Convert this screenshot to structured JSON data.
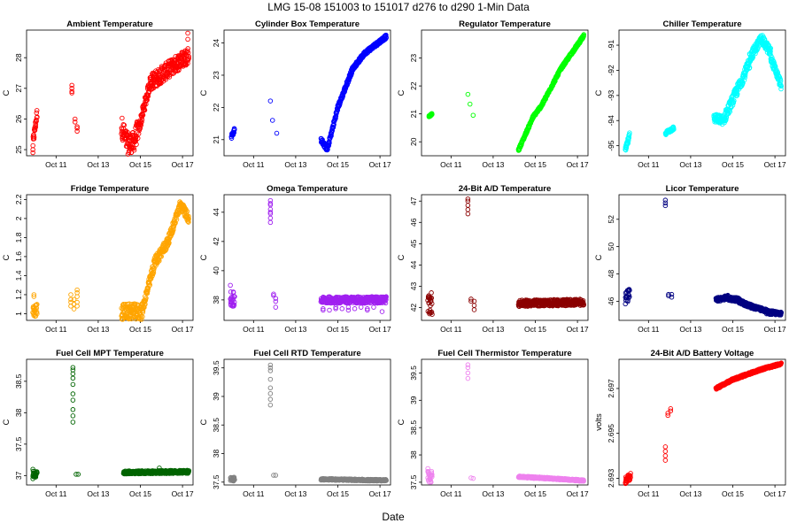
{
  "figure": {
    "title": "LMG   15-08    151003 to 151017    d276 to d290   1-Min Data",
    "xlabel": "Date"
  },
  "chart_data": [
    {
      "type": "scatter",
      "title": "Ambient Temperature",
      "ylabel": "C",
      "color": "#ff0000",
      "xlim": [
        9.6,
        17.5
      ],
      "ylim": [
        24.8,
        28.9
      ],
      "yticks": [
        25,
        26,
        27,
        28
      ],
      "xticks": [
        "Oct 11",
        "Oct 13",
        "Oct 15",
        "Oct 17"
      ],
      "xtick_values": [
        11,
        13,
        15,
        17
      ],
      "segments": [
        {
          "x0": 9.9,
          "x1": 10.1,
          "y0": 25.2,
          "y1": 26.2,
          "spread": 0.35
        },
        {
          "x0": 14.1,
          "x1": 14.9,
          "y0": 25.8,
          "y1": 25.7,
          "spread": 0.7,
          "shape": "dip"
        },
        {
          "x0": 14.9,
          "x1": 15.5,
          "y0": 25.6,
          "y1": 27.3,
          "spread": 0.4
        },
        {
          "x0": 15.5,
          "x1": 17.3,
          "y0": 27.2,
          "y1": 28.1,
          "spread": 0.55
        }
      ],
      "clusters": [
        {
          "x": 11.75,
          "ys": [
            26.9,
            27.0,
            27.1,
            26.85
          ]
        },
        {
          "x": 11.9,
          "ys": [
            25.9,
            26.0
          ]
        },
        {
          "x": 12.0,
          "ys": [
            25.6,
            25.7,
            25.75
          ]
        },
        {
          "x": 9.9,
          "ys": [
            24.9,
            25.0
          ]
        },
        {
          "x": 17.25,
          "ys": [
            28.8,
            28.6
          ]
        }
      ]
    },
    {
      "type": "scatter",
      "title": "Cylinder Box Temperature",
      "ylabel": "C",
      "color": "#0000ff",
      "xlim": [
        9.6,
        17.5
      ],
      "ylim": [
        20.5,
        24.4
      ],
      "yticks": [
        21,
        22,
        23,
        24
      ],
      "xticks": [
        "Oct 11",
        "Oct 13",
        "Oct 15",
        "Oct 17"
      ],
      "xtick_values": [
        11,
        13,
        15,
        17
      ],
      "segments": [
        {
          "x0": 9.95,
          "x1": 10.1,
          "y0": 21.1,
          "y1": 21.3,
          "spread": 0.15
        },
        {
          "x0": 14.2,
          "x1": 14.5,
          "y0": 21.0,
          "y1": 20.7,
          "spread": 0.15
        },
        {
          "x0": 14.5,
          "x1": 15.0,
          "y0": 20.7,
          "y1": 22.0,
          "spread": 0.15
        },
        {
          "x0": 15.0,
          "x1": 15.7,
          "y0": 22.0,
          "y1": 23.2,
          "spread": 0.15
        },
        {
          "x0": 15.7,
          "x1": 16.3,
          "y0": 23.2,
          "y1": 23.7,
          "spread": 0.12
        },
        {
          "x0": 16.3,
          "x1": 17.3,
          "y0": 23.7,
          "y1": 24.2,
          "spread": 0.12
        }
      ],
      "clusters": [
        {
          "x": 11.8,
          "ys": [
            22.2
          ]
        },
        {
          "x": 11.9,
          "ys": [
            21.6
          ]
        },
        {
          "x": 12.1,
          "ys": [
            21.2
          ]
        }
      ]
    },
    {
      "type": "scatter",
      "title": "Regulator Temperature",
      "ylabel": "C",
      "color": "#00ff00",
      "xlim": [
        9.6,
        17.5
      ],
      "ylim": [
        19.5,
        24.0
      ],
      "yticks": [
        20,
        21,
        22,
        23
      ],
      "xticks": [
        "Oct 11",
        "Oct 13",
        "Oct 15",
        "Oct 17"
      ],
      "xtick_values": [
        11,
        13,
        15,
        17
      ],
      "segments": [
        {
          "x0": 9.95,
          "x1": 10.1,
          "y0": 20.9,
          "y1": 21.0,
          "spread": 0.06
        },
        {
          "x0": 14.2,
          "x1": 14.9,
          "y0": 19.7,
          "y1": 20.9,
          "spread": 0.1
        },
        {
          "x0": 14.9,
          "x1": 15.3,
          "y0": 20.9,
          "y1": 21.3,
          "spread": 0.1
        },
        {
          "x0": 15.3,
          "x1": 16.2,
          "y0": 21.3,
          "y1": 22.6,
          "spread": 0.1
        },
        {
          "x0": 16.2,
          "x1": 17.3,
          "y0": 22.6,
          "y1": 23.8,
          "spread": 0.1
        }
      ],
      "clusters": [
        {
          "x": 11.8,
          "ys": [
            21.7
          ]
        },
        {
          "x": 11.9,
          "ys": [
            21.35
          ]
        },
        {
          "x": 12.05,
          "ys": [
            20.95
          ]
        }
      ]
    },
    {
      "type": "scatter",
      "title": "Chiller Temperature",
      "ylabel": "C",
      "color": "#00ffff",
      "xlim": [
        9.6,
        17.5
      ],
      "ylim": [
        -95.4,
        -90.4
      ],
      "yticks": [
        -95,
        -94,
        -93,
        -92,
        -91
      ],
      "xticks": [
        "Oct 11",
        "Oct 13",
        "Oct 15",
        "Oct 17"
      ],
      "xtick_values": [
        11,
        13,
        15,
        17
      ],
      "segments": [
        {
          "x0": 9.9,
          "x1": 10.1,
          "y0": -95.2,
          "y1": -94.6,
          "spread": 0.25
        },
        {
          "x0": 11.8,
          "x1": 12.2,
          "y0": -94.5,
          "y1": -94.3,
          "spread": 0.15
        },
        {
          "x0": 14.1,
          "x1": 14.6,
          "y0": -93.9,
          "y1": -94.0,
          "spread": 0.35
        },
        {
          "x0": 14.6,
          "x1": 15.2,
          "y0": -93.9,
          "y1": -92.8,
          "spread": 0.45
        },
        {
          "x0": 15.2,
          "x1": 15.8,
          "y0": -92.8,
          "y1": -91.7,
          "spread": 0.45
        },
        {
          "x0": 15.8,
          "x1": 16.4,
          "y0": -91.5,
          "y1": -90.7,
          "spread": 0.4
        },
        {
          "x0": 16.4,
          "x1": 16.8,
          "y0": -90.8,
          "y1": -91.3,
          "spread": 0.4
        },
        {
          "x0": 16.8,
          "x1": 17.3,
          "y0": -91.5,
          "y1": -92.6,
          "spread": 0.35
        }
      ],
      "clusters": []
    },
    {
      "type": "scatter",
      "title": "Fridge Temperature",
      "ylabel": "C",
      "color": "#ffa500",
      "xlim": [
        9.6,
        17.5
      ],
      "ylim": [
        0.93,
        2.25
      ],
      "yticks": [
        1.0,
        1.2,
        1.4,
        1.6,
        1.8,
        2.0,
        2.2
      ],
      "xticks": [
        "Oct 11",
        "Oct 13",
        "Oct 15",
        "Oct 17"
      ],
      "xtick_values": [
        11,
        13,
        15,
        17
      ],
      "segments": [
        {
          "x0": 9.9,
          "x1": 10.1,
          "y0": 1.0,
          "y1": 1.05,
          "spread": 0.14
        },
        {
          "x0": 14.1,
          "x1": 15.1,
          "y0": 1.02,
          "y1": 1.02,
          "spread": 0.17
        },
        {
          "x0": 15.1,
          "x1": 15.7,
          "y0": 1.05,
          "y1": 1.55,
          "spread": 0.12
        },
        {
          "x0": 15.7,
          "x1": 16.3,
          "y0": 1.55,
          "y1": 1.75,
          "spread": 0.12
        },
        {
          "x0": 16.3,
          "x1": 16.9,
          "y0": 1.75,
          "y1": 2.15,
          "spread": 0.1
        },
        {
          "x0": 16.9,
          "x1": 17.3,
          "y0": 2.15,
          "y1": 2.0,
          "spread": 0.1
        }
      ],
      "clusters": [
        {
          "x": 11.7,
          "ys": [
            1.08,
            1.12,
            1.15,
            1.2
          ]
        },
        {
          "x": 11.85,
          "ys": [
            1.1,
            1.15,
            1.05
          ]
        },
        {
          "x": 12.0,
          "ys": [
            1.12,
            1.18,
            1.22,
            1.25,
            1.08
          ]
        },
        {
          "x": 9.95,
          "ys": [
            1.2,
            1.18
          ]
        }
      ]
    },
    {
      "type": "scatter",
      "title": "Omega Temperature",
      "ylabel": "C",
      "color": "#a020f0",
      "xlim": [
        9.6,
        17.5
      ],
      "ylim": [
        36.6,
        45.2
      ],
      "yticks": [
        38,
        40,
        42,
        44
      ],
      "xticks": [
        "Oct 11",
        "Oct 13",
        "Oct 15",
        "Oct 17"
      ],
      "xtick_values": [
        11,
        13,
        15,
        17
      ],
      "segments": [
        {
          "x0": 9.9,
          "x1": 10.1,
          "y0": 38.0,
          "y1": 38.0,
          "spread": 1.1
        },
        {
          "x0": 14.2,
          "x1": 17.3,
          "y0": 38.0,
          "y1": 38.0,
          "spread": 0.45
        }
      ],
      "clusters": [
        {
          "x": 11.8,
          "ys": [
            43.3,
            43.6,
            43.9,
            44.2,
            44.5,
            44.8,
            44.6,
            44.0
          ]
        },
        {
          "x": 11.95,
          "ys": [
            38.4,
            38.3
          ]
        },
        {
          "x": 12.05,
          "ys": [
            38.1,
            37.9,
            37.5
          ]
        },
        {
          "x": 9.9,
          "ys": [
            39.0
          ]
        },
        {
          "x": 14.3,
          "ys": [
            37.3,
            37.4
          ]
        },
        {
          "x": 14.6,
          "ys": [
            37.3
          ]
        },
        {
          "x": 14.9,
          "ys": [
            37.4,
            37.5
          ]
        },
        {
          "x": 15.2,
          "ys": [
            37.4
          ]
        },
        {
          "x": 15.5,
          "ys": [
            37.5,
            37.3
          ]
        },
        {
          "x": 15.8,
          "ys": [
            37.4
          ]
        },
        {
          "x": 16.1,
          "ys": [
            37.5
          ]
        },
        {
          "x": 16.4,
          "ys": [
            37.4,
            37.3
          ]
        },
        {
          "x": 16.7,
          "ys": [
            37.5
          ]
        },
        {
          "x": 17.1,
          "ys": [
            37.2
          ]
        }
      ]
    },
    {
      "type": "scatter",
      "title": "24-Bit A/D Temperature",
      "ylabel": "C",
      "color": "#8b0000",
      "xlim": [
        9.6,
        17.5
      ],
      "ylim": [
        41.4,
        47.3
      ],
      "yticks": [
        42,
        43,
        44,
        45,
        46,
        47
      ],
      "xticks": [
        "Oct 11",
        "Oct 13",
        "Oct 15",
        "Oct 17"
      ],
      "xtick_values": [
        11,
        13,
        15,
        17
      ],
      "segments": [
        {
          "x0": 9.9,
          "x1": 10.1,
          "y0": 42.2,
          "y1": 42.2,
          "spread": 1.1
        },
        {
          "x0": 14.2,
          "x1": 17.3,
          "y0": 42.2,
          "y1": 42.25,
          "spread": 0.3
        }
      ],
      "clusters": [
        {
          "x": 11.8,
          "ys": [
            46.4,
            46.6,
            46.8,
            47.0,
            47.1
          ]
        },
        {
          "x": 11.95,
          "ys": [
            42.4,
            42.3
          ]
        },
        {
          "x": 12.1,
          "ys": [
            42.3,
            42.1,
            41.9
          ]
        }
      ]
    },
    {
      "type": "scatter",
      "title": "Licor Temperature",
      "ylabel": "C",
      "color": "#000080",
      "xlim": [
        9.6,
        17.5
      ],
      "ylim": [
        44.6,
        53.8
      ],
      "yticks": [
        46,
        48,
        50,
        52
      ],
      "xticks": [
        "Oct 11",
        "Oct 13",
        "Oct 15",
        "Oct 17"
      ],
      "xtick_values": [
        11,
        13,
        15,
        17
      ],
      "segments": [
        {
          "x0": 9.9,
          "x1": 10.1,
          "y0": 46.2,
          "y1": 46.5,
          "spread": 0.9
        },
        {
          "x0": 14.2,
          "x1": 14.8,
          "y0": 46.1,
          "y1": 46.3,
          "spread": 0.3
        },
        {
          "x0": 14.8,
          "x1": 15.3,
          "y0": 46.2,
          "y1": 46.1,
          "spread": 0.3
        },
        {
          "x0": 15.3,
          "x1": 15.9,
          "y0": 46.0,
          "y1": 45.6,
          "spread": 0.3
        },
        {
          "x0": 15.9,
          "x1": 16.6,
          "y0": 45.6,
          "y1": 45.3,
          "spread": 0.25
        },
        {
          "x0": 16.6,
          "x1": 17.3,
          "y0": 45.2,
          "y1": 45.1,
          "spread": 0.3
        }
      ],
      "clusters": [
        {
          "x": 11.8,
          "ys": [
            53.0,
            53.2,
            53.4
          ]
        },
        {
          "x": 11.95,
          "ys": [
            46.5,
            46.4
          ]
        },
        {
          "x": 12.1,
          "ys": [
            46.5,
            46.3
          ]
        }
      ]
    },
    {
      "type": "scatter",
      "title": "Fuel Cell MPT Temperature",
      "ylabel": "C",
      "color": "#006400",
      "xlim": [
        9.6,
        17.5
      ],
      "ylim": [
        36.85,
        38.85
      ],
      "yticks": [
        37.0,
        37.5,
        38.0,
        38.5
      ],
      "xticks": [
        "Oct 11",
        "Oct 13",
        "Oct 15",
        "Oct 17"
      ],
      "xtick_values": [
        11,
        13,
        15,
        17
      ],
      "segments": [
        {
          "x0": 9.9,
          "x1": 10.1,
          "y0": 37.02,
          "y1": 37.02,
          "spread": 0.1
        },
        {
          "x0": 14.2,
          "x1": 17.3,
          "y0": 37.05,
          "y1": 37.06,
          "spread": 0.05
        }
      ],
      "clusters": [
        {
          "x": 11.8,
          "ys": [
            37.85,
            37.95,
            38.05,
            38.2,
            38.3,
            38.45,
            38.55,
            38.62,
            38.68,
            38.72
          ]
        },
        {
          "x": 11.95,
          "ys": [
            37.02
          ]
        },
        {
          "x": 12.05,
          "ys": [
            37.02
          ]
        },
        {
          "x": 9.9,
          "ys": [
            36.95,
            37.1
          ]
        },
        {
          "x": 15.9,
          "ys": [
            37.12
          ]
        }
      ]
    },
    {
      "type": "scatter",
      "title": "Fuel Cell RTD Temperature",
      "ylabel": "C",
      "color": "#808080",
      "xlim": [
        9.6,
        17.5
      ],
      "ylim": [
        37.45,
        39.65
      ],
      "yticks": [
        37.5,
        38.0,
        38.5,
        39.0,
        39.5
      ],
      "xticks": [
        "Oct 11",
        "Oct 13",
        "Oct 15",
        "Oct 17"
      ],
      "xtick_values": [
        11,
        13,
        15,
        17
      ],
      "segments": [
        {
          "x0": 9.9,
          "x1": 10.1,
          "y0": 37.55,
          "y1": 37.55,
          "spread": 0.08
        },
        {
          "x0": 14.2,
          "x1": 17.3,
          "y0": 37.55,
          "y1": 37.53,
          "spread": 0.03
        }
      ],
      "clusters": [
        {
          "x": 11.8,
          "ys": [
            38.85,
            38.95,
            39.05,
            39.15,
            39.3,
            39.45,
            39.5,
            39.55
          ]
        },
        {
          "x": 11.95,
          "ys": [
            37.62
          ]
        },
        {
          "x": 12.05,
          "ys": [
            37.62
          ]
        }
      ]
    },
    {
      "type": "scatter",
      "title": "Fuel Cell Thermistor Temperature",
      "ylabel": "C",
      "color": "#ee82ee",
      "xlim": [
        9.6,
        17.5
      ],
      "ylim": [
        37.45,
        39.75
      ],
      "yticks": [
        37.5,
        38.0,
        38.5,
        39.0,
        39.5
      ],
      "xticks": [
        "Oct 11",
        "Oct 13",
        "Oct 15",
        "Oct 17"
      ],
      "xtick_values": [
        11,
        13,
        15,
        17
      ],
      "segments": [
        {
          "x0": 9.9,
          "x1": 10.1,
          "y0": 37.6,
          "y1": 37.6,
          "spread": 0.2
        },
        {
          "x0": 14.2,
          "x1": 15.3,
          "y0": 37.6,
          "y1": 37.58,
          "spread": 0.03
        },
        {
          "x0": 15.3,
          "x1": 17.3,
          "y0": 37.58,
          "y1": 37.53,
          "spread": 0.03
        }
      ],
      "clusters": [
        {
          "x": 11.8,
          "ys": [
            39.4,
            39.5,
            39.6,
            39.65
          ]
        },
        {
          "x": 11.95,
          "ys": [
            37.58
          ]
        },
        {
          "x": 12.05,
          "ys": [
            37.57
          ]
        },
        {
          "x": 9.9,
          "ys": [
            37.75,
            37.7
          ]
        }
      ]
    },
    {
      "type": "scatter",
      "title": "24-Bit A/D Battery Voltage",
      "ylabel": "volts",
      "color": "#ff0000",
      "xlim": [
        9.6,
        17.5
      ],
      "ylim": [
        2.6927,
        2.6983
      ],
      "yticks": [
        2.693,
        2.695,
        2.697
      ],
      "xticks": [
        "Oct 11",
        "Oct 13",
        "Oct 15",
        "Oct 17"
      ],
      "xtick_values": [
        11,
        13,
        15,
        17
      ],
      "segments": [
        {
          "x0": 9.9,
          "x1": 10.15,
          "y0": 2.6929,
          "y1": 2.6931,
          "spread": 0.0003
        },
        {
          "x0": 14.2,
          "x1": 15.0,
          "y0": 2.697,
          "y1": 2.6974,
          "spread": 0.0001
        },
        {
          "x0": 15.0,
          "x1": 16.5,
          "y0": 2.6974,
          "y1": 2.6979,
          "spread": 0.0001
        },
        {
          "x0": 16.5,
          "x1": 17.3,
          "y0": 2.6979,
          "y1": 2.6981,
          "spread": 0.0001
        }
      ],
      "clusters": [
        {
          "x": 11.8,
          "ys": [
            2.6938,
            2.694,
            2.6942,
            2.6944
          ]
        },
        {
          "x": 11.92,
          "ys": [
            2.6958,
            2.6959
          ]
        },
        {
          "x": 12.05,
          "ys": [
            2.696,
            2.6961
          ]
        }
      ]
    }
  ]
}
